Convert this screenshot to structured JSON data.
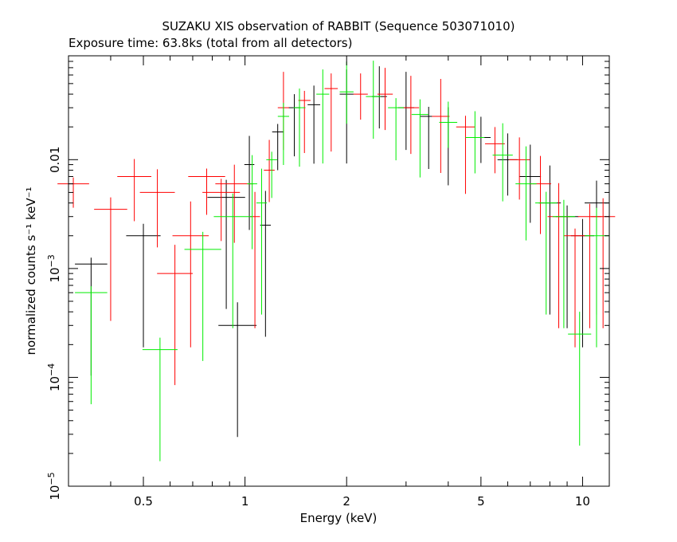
{
  "chart_data": {
    "type": "scatter",
    "title": "SUZAKU XIS observation of RABBIT (Sequence 503071010)",
    "subtitle": "Exposure time: 63.8ks (total from all detectors)",
    "xlabel": "Energy (keV)",
    "ylabel": "normalized counts s⁻¹ keV⁻¹",
    "x_scale": "log",
    "y_scale": "log",
    "xlim": [
      0.3,
      12
    ],
    "ylim": [
      1e-05,
      0.09
    ],
    "x_ticks": [
      {
        "value": 0.5,
        "label": "0.5"
      },
      {
        "value": 1,
        "label": "1"
      },
      {
        "value": 2,
        "label": "2"
      },
      {
        "value": 5,
        "label": "5"
      },
      {
        "value": 10,
        "label": "10"
      }
    ],
    "y_ticks": [
      {
        "value": 1e-05,
        "base": "10",
        "exp": "−5"
      },
      {
        "value": 0.0001,
        "base": "10",
        "exp": "−4"
      },
      {
        "value": 0.001,
        "base": "10",
        "exp": "−3"
      },
      {
        "value": 0.01,
        "label": "0.01"
      }
    ],
    "grid": false,
    "series_colors": [
      "#000000",
      "#ff0000",
      "#00ee00"
    ],
    "spectrum_shape": {
      "low_energy_end": 0.3,
      "peak_energy_range": [
        1.7,
        2.6
      ],
      "peak_level": 0.045,
      "level_at_5keV": 0.015,
      "level_at_10keV": 0.002
    },
    "series": [
      {
        "color": "#000000",
        "x": [
          0.35,
          0.5,
          0.88,
          0.95,
          1.03,
          1.15,
          1.25,
          1.4,
          1.6,
          2.0,
          2.5,
          3.0,
          3.5,
          4.0,
          5.0,
          6.0,
          7.0,
          8.0,
          9.0,
          10.0,
          11.0
        ],
        "y": [
          0.0011,
          0.002,
          0.0045,
          0.0003,
          0.009,
          0.0025,
          0.018,
          0.03,
          0.032,
          0.04,
          0.038,
          0.03,
          0.025,
          0.022,
          0.016,
          0.01,
          0.007,
          0.004,
          0.003,
          0.002,
          0.004
        ]
      },
      {
        "color": "#ff0000",
        "x": [
          0.31,
          0.4,
          0.47,
          0.55,
          0.62,
          0.69,
          0.77,
          0.85,
          0.93,
          1.07,
          1.18,
          1.3,
          1.5,
          1.8,
          2.2,
          2.6,
          3.1,
          3.8,
          4.5,
          5.5,
          6.5,
          7.5,
          8.5,
          9.5,
          10.5,
          11.5
        ],
        "y": [
          0.006,
          0.0035,
          0.007,
          0.005,
          0.0009,
          0.002,
          0.007,
          0.005,
          0.006,
          0.003,
          0.008,
          0.03,
          0.035,
          0.045,
          0.04,
          0.04,
          0.03,
          0.025,
          0.02,
          0.014,
          0.01,
          0.006,
          0.003,
          0.002,
          0.003,
          0.003
        ]
      },
      {
        "color": "#00ee00",
        "x": [
          0.35,
          0.56,
          0.75,
          0.92,
          1.05,
          1.12,
          1.2,
          1.3,
          1.45,
          1.7,
          2.0,
          2.4,
          2.8,
          3.3,
          4.0,
          4.8,
          5.8,
          6.8,
          7.8,
          8.8,
          9.8,
          11.0
        ],
        "y": [
          0.0006,
          0.00018,
          0.0015,
          0.003,
          0.006,
          0.004,
          0.01,
          0.025,
          0.03,
          0.04,
          0.042,
          0.038,
          0.03,
          0.026,
          0.022,
          0.016,
          0.011,
          0.006,
          0.004,
          0.003,
          0.00025,
          0.002
        ]
      }
    ]
  }
}
